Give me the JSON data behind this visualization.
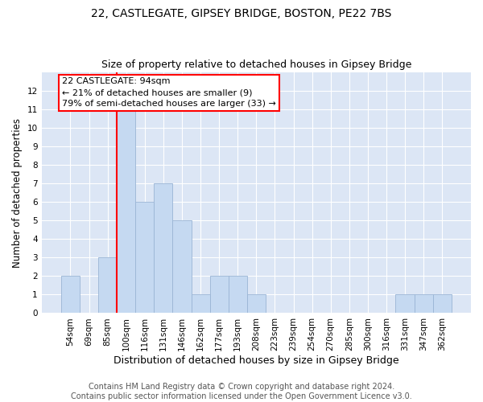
{
  "title_line1": "22, CASTLEGATE, GIPSEY BRIDGE, BOSTON, PE22 7BS",
  "title_line2": "Size of property relative to detached houses in Gipsey Bridge",
  "xlabel": "Distribution of detached houses by size in Gipsey Bridge",
  "ylabel": "Number of detached properties",
  "categories": [
    "54sqm",
    "69sqm",
    "85sqm",
    "100sqm",
    "116sqm",
    "131sqm",
    "146sqm",
    "162sqm",
    "177sqm",
    "193sqm",
    "208sqm",
    "223sqm",
    "239sqm",
    "254sqm",
    "270sqm",
    "285sqm",
    "300sqm",
    "316sqm",
    "331sqm",
    "347sqm",
    "362sqm"
  ],
  "values": [
    2,
    0,
    3,
    11,
    6,
    7,
    5,
    1,
    2,
    2,
    1,
    0,
    0,
    0,
    0,
    0,
    0,
    0,
    1,
    1,
    1
  ],
  "bar_color": "#c5d9f1",
  "bar_edge_color": "#9ab5d5",
  "red_line_x": 2.5,
  "annotation_box_text": "22 CASTLEGATE: 94sqm\n← 21% of detached houses are smaller (9)\n79% of semi-detached houses are larger (33) →",
  "ylim": [
    0,
    13
  ],
  "yticks": [
    0,
    1,
    2,
    3,
    4,
    5,
    6,
    7,
    8,
    9,
    10,
    11,
    12,
    13
  ],
  "background_color": "#dce6f5",
  "grid_color": "#ffffff",
  "footer_line1": "Contains HM Land Registry data © Crown copyright and database right 2024.",
  "footer_line2": "Contains public sector information licensed under the Open Government Licence v3.0.",
  "title_fontsize": 10,
  "subtitle_fontsize": 9,
  "xlabel_fontsize": 9,
  "ylabel_fontsize": 8.5,
  "annotation_fontsize": 8,
  "footer_fontsize": 7,
  "tick_fontsize": 7.5
}
